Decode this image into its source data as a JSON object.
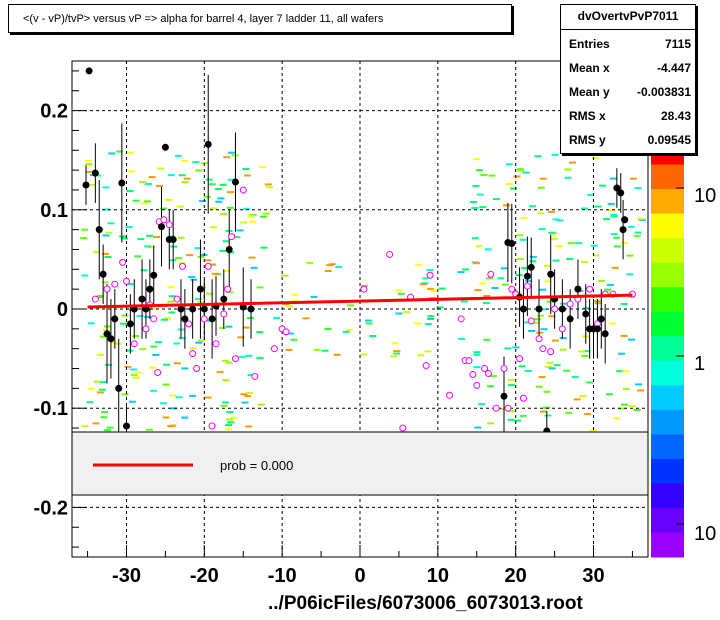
{
  "chart_data": {
    "type": "scatter",
    "title": "<(v - vP)/tvP> versus   vP => alpha for barrel 4, layer 7 ladder 11, all wafers",
    "xlabel": "../P06icFiles/6073006_6073013.root",
    "ylabel": "",
    "xlim": [
      -37,
      37
    ],
    "ylim": [
      -0.25,
      0.25
    ],
    "x_ticks": [
      -30,
      -20,
      -10,
      0,
      10,
      20,
      30
    ],
    "y_ticks": [
      -0.2,
      -0.1,
      0,
      0.1,
      0.2
    ],
    "x_tick_labels": [
      "-30",
      "-20",
      "-10",
      "0",
      "10",
      "20",
      "30"
    ],
    "y_tick_labels": [
      "-0.2",
      "-0.1",
      "0",
      "0.1",
      "0.2"
    ],
    "grid": true,
    "colorbar": {
      "labels": [
        "10",
        "1",
        "10"
      ],
      "scale": "log"
    },
    "stats": {
      "name": "dvOvertvPvP7011",
      "rows": [
        {
          "label": "Entries",
          "value": "7115"
        },
        {
          "label": "Mean x",
          "value": "-4.447"
        },
        {
          "label": "Mean y",
          "value": "-0.003831"
        },
        {
          "label": "RMS x",
          "value": "28.43"
        },
        {
          "label": "RMS y",
          "value": "0.09545"
        }
      ]
    },
    "legend": {
      "label": "prob = 0.000",
      "color": "#ff0000"
    },
    "fit_line": {
      "x": [
        -35,
        35
      ],
      "y": [
        0.002,
        0.014
      ],
      "color": "#ff0000"
    },
    "series": [
      {
        "marker": "filled-circle",
        "color": "#000000",
        "points": [
          {
            "x": -35.2,
            "y": 0.125,
            "err": 0.02
          },
          {
            "x": -34.8,
            "y": 0.24,
            "err": 0.0
          },
          {
            "x": -34.0,
            "y": 0.137,
            "err": 0.03
          },
          {
            "x": -33.5,
            "y": 0.08,
            "err": 0.05
          },
          {
            "x": -33.0,
            "y": 0.035,
            "err": 0.03
          },
          {
            "x": -32.5,
            "y": -0.025,
            "err": 0.05
          },
          {
            "x": -32.0,
            "y": -0.03,
            "err": 0.04
          },
          {
            "x": -31.5,
            "y": -0.01,
            "err": 0.03
          },
          {
            "x": -31.0,
            "y": -0.08,
            "err": 0.05
          },
          {
            "x": -30.6,
            "y": 0.127,
            "err": 0.06
          },
          {
            "x": -30.0,
            "y": -0.118,
            "err": 0.02
          },
          {
            "x": -29.5,
            "y": -0.015,
            "err": 0.03
          },
          {
            "x": -29.0,
            "y": 0.0,
            "err": 0.03
          },
          {
            "x": -28.0,
            "y": 0.01,
            "err": 0.04
          },
          {
            "x": -27.5,
            "y": 0.0,
            "err": 0.03
          },
          {
            "x": -27.0,
            "y": 0.02,
            "err": 0.03
          },
          {
            "x": -26.5,
            "y": 0.034,
            "err": 0.03
          },
          {
            "x": -25.5,
            "y": 0.083,
            "err": 0.04
          },
          {
            "x": -25.0,
            "y": 0.163,
            "err": 0.0
          },
          {
            "x": -24.5,
            "y": 0.07,
            "err": 0.03
          },
          {
            "x": -24.0,
            "y": 0.07,
            "err": 0.03
          },
          {
            "x": -23.0,
            "y": 0.0,
            "err": 0.03
          },
          {
            "x": -22.5,
            "y": -0.01,
            "err": 0.03
          },
          {
            "x": -21.5,
            "y": 0.0,
            "err": 0.03
          },
          {
            "x": -20.5,
            "y": 0.02,
            "err": 0.05
          },
          {
            "x": -20.0,
            "y": 0.0,
            "err": 0.03
          },
          {
            "x": -19.5,
            "y": 0.166,
            "err": 0.07
          },
          {
            "x": -19.0,
            "y": -0.01,
            "err": 0.04
          },
          {
            "x": -18.5,
            "y": 0.003,
            "err": 0.03
          },
          {
            "x": -17.5,
            "y": 0.01,
            "err": 0.03
          },
          {
            "x": -16.8,
            "y": 0.06,
            "err": 0.04
          },
          {
            "x": -16.0,
            "y": 0.128,
            "err": 0.05
          },
          {
            "x": -15.0,
            "y": 0.002,
            "err": 0.04
          },
          {
            "x": -14.0,
            "y": 0.0,
            "err": 0.03
          },
          {
            "x": 18.5,
            "y": -0.088,
            "err": 0.04
          },
          {
            "x": 19.0,
            "y": 0.067,
            "err": 0.04
          },
          {
            "x": 19.5,
            "y": 0.066,
            "err": 0.04
          },
          {
            "x": 20.5,
            "y": 0.012,
            "err": 0.03
          },
          {
            "x": 21.0,
            "y": 0.0,
            "err": 0.03
          },
          {
            "x": 21.5,
            "y": 0.033,
            "err": 0.04
          },
          {
            "x": 22.0,
            "y": 0.042,
            "err": 0.03
          },
          {
            "x": 23.0,
            "y": 0.0,
            "err": 0.03
          },
          {
            "x": 24.0,
            "y": -0.123,
            "err": 0.02
          },
          {
            "x": 24.5,
            "y": 0.035,
            "err": 0.04
          },
          {
            "x": 25.0,
            "y": 0.01,
            "err": 0.03
          },
          {
            "x": 26.0,
            "y": 0.0,
            "err": 0.03
          },
          {
            "x": 27.0,
            "y": -0.01,
            "err": 0.03
          },
          {
            "x": 28.0,
            "y": 0.02,
            "err": 0.03
          },
          {
            "x": 29.0,
            "y": -0.005,
            "err": 0.03
          },
          {
            "x": 29.5,
            "y": -0.02,
            "err": 0.03
          },
          {
            "x": 30.0,
            "y": -0.02,
            "err": 0.03
          },
          {
            "x": 30.5,
            "y": -0.02,
            "err": 0.03
          },
          {
            "x": 31.0,
            "y": -0.01,
            "err": 0.03
          },
          {
            "x": 31.5,
            "y": -0.025,
            "err": 0.03
          },
          {
            "x": 33.0,
            "y": 0.122,
            "err": 0.02
          },
          {
            "x": 33.5,
            "y": 0.117,
            "err": 0.02
          },
          {
            "x": 33.8,
            "y": 0.08,
            "err": 0.03
          },
          {
            "x": 34.0,
            "y": 0.09,
            "err": 0.0
          },
          {
            "x": 33.0,
            "y": 0.18,
            "err": 0.0
          }
        ]
      },
      {
        "marker": "open-circle",
        "color": "#ff00ff",
        "points": [
          {
            "x": -34.0,
            "y": 0.01
          },
          {
            "x": -32.5,
            "y": 0.02
          },
          {
            "x": -31.5,
            "y": 0.025
          },
          {
            "x": -30.5,
            "y": 0.047
          },
          {
            "x": -30.0,
            "y": 0.028
          },
          {
            "x": -29.0,
            "y": -0.035
          },
          {
            "x": -28.0,
            "y": 0.01
          },
          {
            "x": -27.5,
            "y": -0.02
          },
          {
            "x": -27.0,
            "y": 0.004
          },
          {
            "x": -26.5,
            "y": -0.01
          },
          {
            "x": -26.0,
            "y": -0.064
          },
          {
            "x": -25.8,
            "y": 0.088
          },
          {
            "x": -25.2,
            "y": 0.09
          },
          {
            "x": -24.5,
            "y": 0.085
          },
          {
            "x": -23.5,
            "y": 0.01
          },
          {
            "x": -22.8,
            "y": 0.043
          },
          {
            "x": -22.0,
            "y": -0.015
          },
          {
            "x": -21.5,
            "y": -0.045
          },
          {
            "x": -21.0,
            "y": -0.06
          },
          {
            "x": -20.0,
            "y": -0.01
          },
          {
            "x": -19.5,
            "y": 0.043
          },
          {
            "x": -19.0,
            "y": -0.118
          },
          {
            "x": -18.5,
            "y": -0.035
          },
          {
            "x": -17.5,
            "y": -0.005
          },
          {
            "x": -17.0,
            "y": 0.02
          },
          {
            "x": -16.5,
            "y": 0.073
          },
          {
            "x": -16.0,
            "y": -0.05
          },
          {
            "x": -15.0,
            "y": 0.12
          },
          {
            "x": -13.5,
            "y": -0.068
          },
          {
            "x": -11.0,
            "y": -0.04
          },
          {
            "x": -10.0,
            "y": -0.02
          },
          {
            "x": -9.5,
            "y": -0.023
          },
          {
            "x": 0.5,
            "y": 0.02
          },
          {
            "x": 3.8,
            "y": 0.055
          },
          {
            "x": 6.5,
            "y": 0.012
          },
          {
            "x": 5.5,
            "y": -0.12
          },
          {
            "x": 8.5,
            "y": -0.057
          },
          {
            "x": 9.0,
            "y": 0.034
          },
          {
            "x": 11.5,
            "y": -0.087
          },
          {
            "x": 13.0,
            "y": -0.01
          },
          {
            "x": 13.5,
            "y": -0.052
          },
          {
            "x": 14.0,
            "y": -0.052
          },
          {
            "x": 14.5,
            "y": -0.066
          },
          {
            "x": 15.0,
            "y": -0.077
          },
          {
            "x": 16.0,
            "y": -0.06
          },
          {
            "x": 16.5,
            "y": -0.065
          },
          {
            "x": 16.8,
            "y": 0.035
          },
          {
            "x": 17.5,
            "y": -0.1
          },
          {
            "x": 18.5,
            "y": -0.06
          },
          {
            "x": 19.0,
            "y": -0.1
          },
          {
            "x": 19.5,
            "y": 0.02
          },
          {
            "x": 20.0,
            "y": 0.015
          },
          {
            "x": 20.5,
            "y": -0.05
          },
          {
            "x": 21.0,
            "y": -0.09
          },
          {
            "x": 21.5,
            "y": 0.023
          },
          {
            "x": 22.0,
            "y": -0.012
          },
          {
            "x": 23.0,
            "y": -0.03
          },
          {
            "x": 23.5,
            "y": -0.04
          },
          {
            "x": 24.5,
            "y": -0.043
          },
          {
            "x": 25.0,
            "y": 0.0
          },
          {
            "x": 26.0,
            "y": -0.02
          },
          {
            "x": 27.0,
            "y": 0.005
          },
          {
            "x": 28.0,
            "y": 0.01
          },
          {
            "x": 29.5,
            "y": 0.02
          },
          {
            "x": 30.5,
            "y": -0.015
          },
          {
            "x": 31.5,
            "y": 0.015
          },
          {
            "x": 32.5,
            "y": 0.015
          },
          {
            "x": 34.0,
            "y": 0.09
          },
          {
            "x": 35.0,
            "y": 0.015
          }
        ]
      }
    ]
  }
}
